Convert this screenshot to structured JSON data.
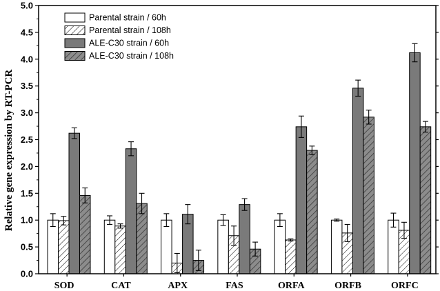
{
  "chart_data": {
    "type": "bar",
    "ylabel": "Relative gene expression by RT-PCR",
    "xlabel": "",
    "ylim": [
      0,
      5.0
    ],
    "yticks": [
      "0.0",
      "0.5",
      "1.0",
      "1.5",
      "2.0",
      "2.5",
      "3.0",
      "3.5",
      "4.0",
      "4.5",
      "5.0"
    ],
    "legend_position": "top-left",
    "categories": [
      "SOD",
      "CAT",
      "APX",
      "FAS",
      "ORFA",
      "ORFB",
      "ORFC"
    ],
    "series": [
      {
        "name": "Parental strain / 60h",
        "style": "white",
        "values": [
          1.0,
          1.0,
          1.0,
          1.0,
          1.0,
          1.0,
          1.0
        ],
        "errors": [
          0.12,
          0.08,
          0.12,
          0.1,
          0.12,
          0.02,
          0.13
        ]
      },
      {
        "name": "Parental strain / 108h",
        "style": "hatch-light",
        "values": [
          0.99,
          0.89,
          0.2,
          0.71,
          0.63,
          0.76,
          0.81
        ],
        "errors": [
          0.08,
          0.04,
          0.18,
          0.18,
          0.02,
          0.16,
          0.15
        ]
      },
      {
        "name": "ALE-C30 strain / 60h",
        "style": "gray",
        "values": [
          2.62,
          2.33,
          1.11,
          1.29,
          2.74,
          3.46,
          4.12
        ],
        "errors": [
          0.1,
          0.13,
          0.18,
          0.11,
          0.2,
          0.15,
          0.17
        ]
      },
      {
        "name": "ALE-C30 strain / 108h",
        "style": "hatch-dark",
        "values": [
          1.46,
          1.31,
          0.25,
          0.46,
          2.3,
          2.92,
          2.74
        ],
        "errors": [
          0.14,
          0.19,
          0.19,
          0.13,
          0.08,
          0.13,
          0.1
        ]
      }
    ],
    "colors": {
      "white": "#ffffff",
      "gray": "#7a7a7a",
      "hatch_dark_fill": "#8c8c8c",
      "hatch_dark_line": "#3a3a3a",
      "hatch_light_line": "#000000",
      "axis": "#000000"
    }
  }
}
